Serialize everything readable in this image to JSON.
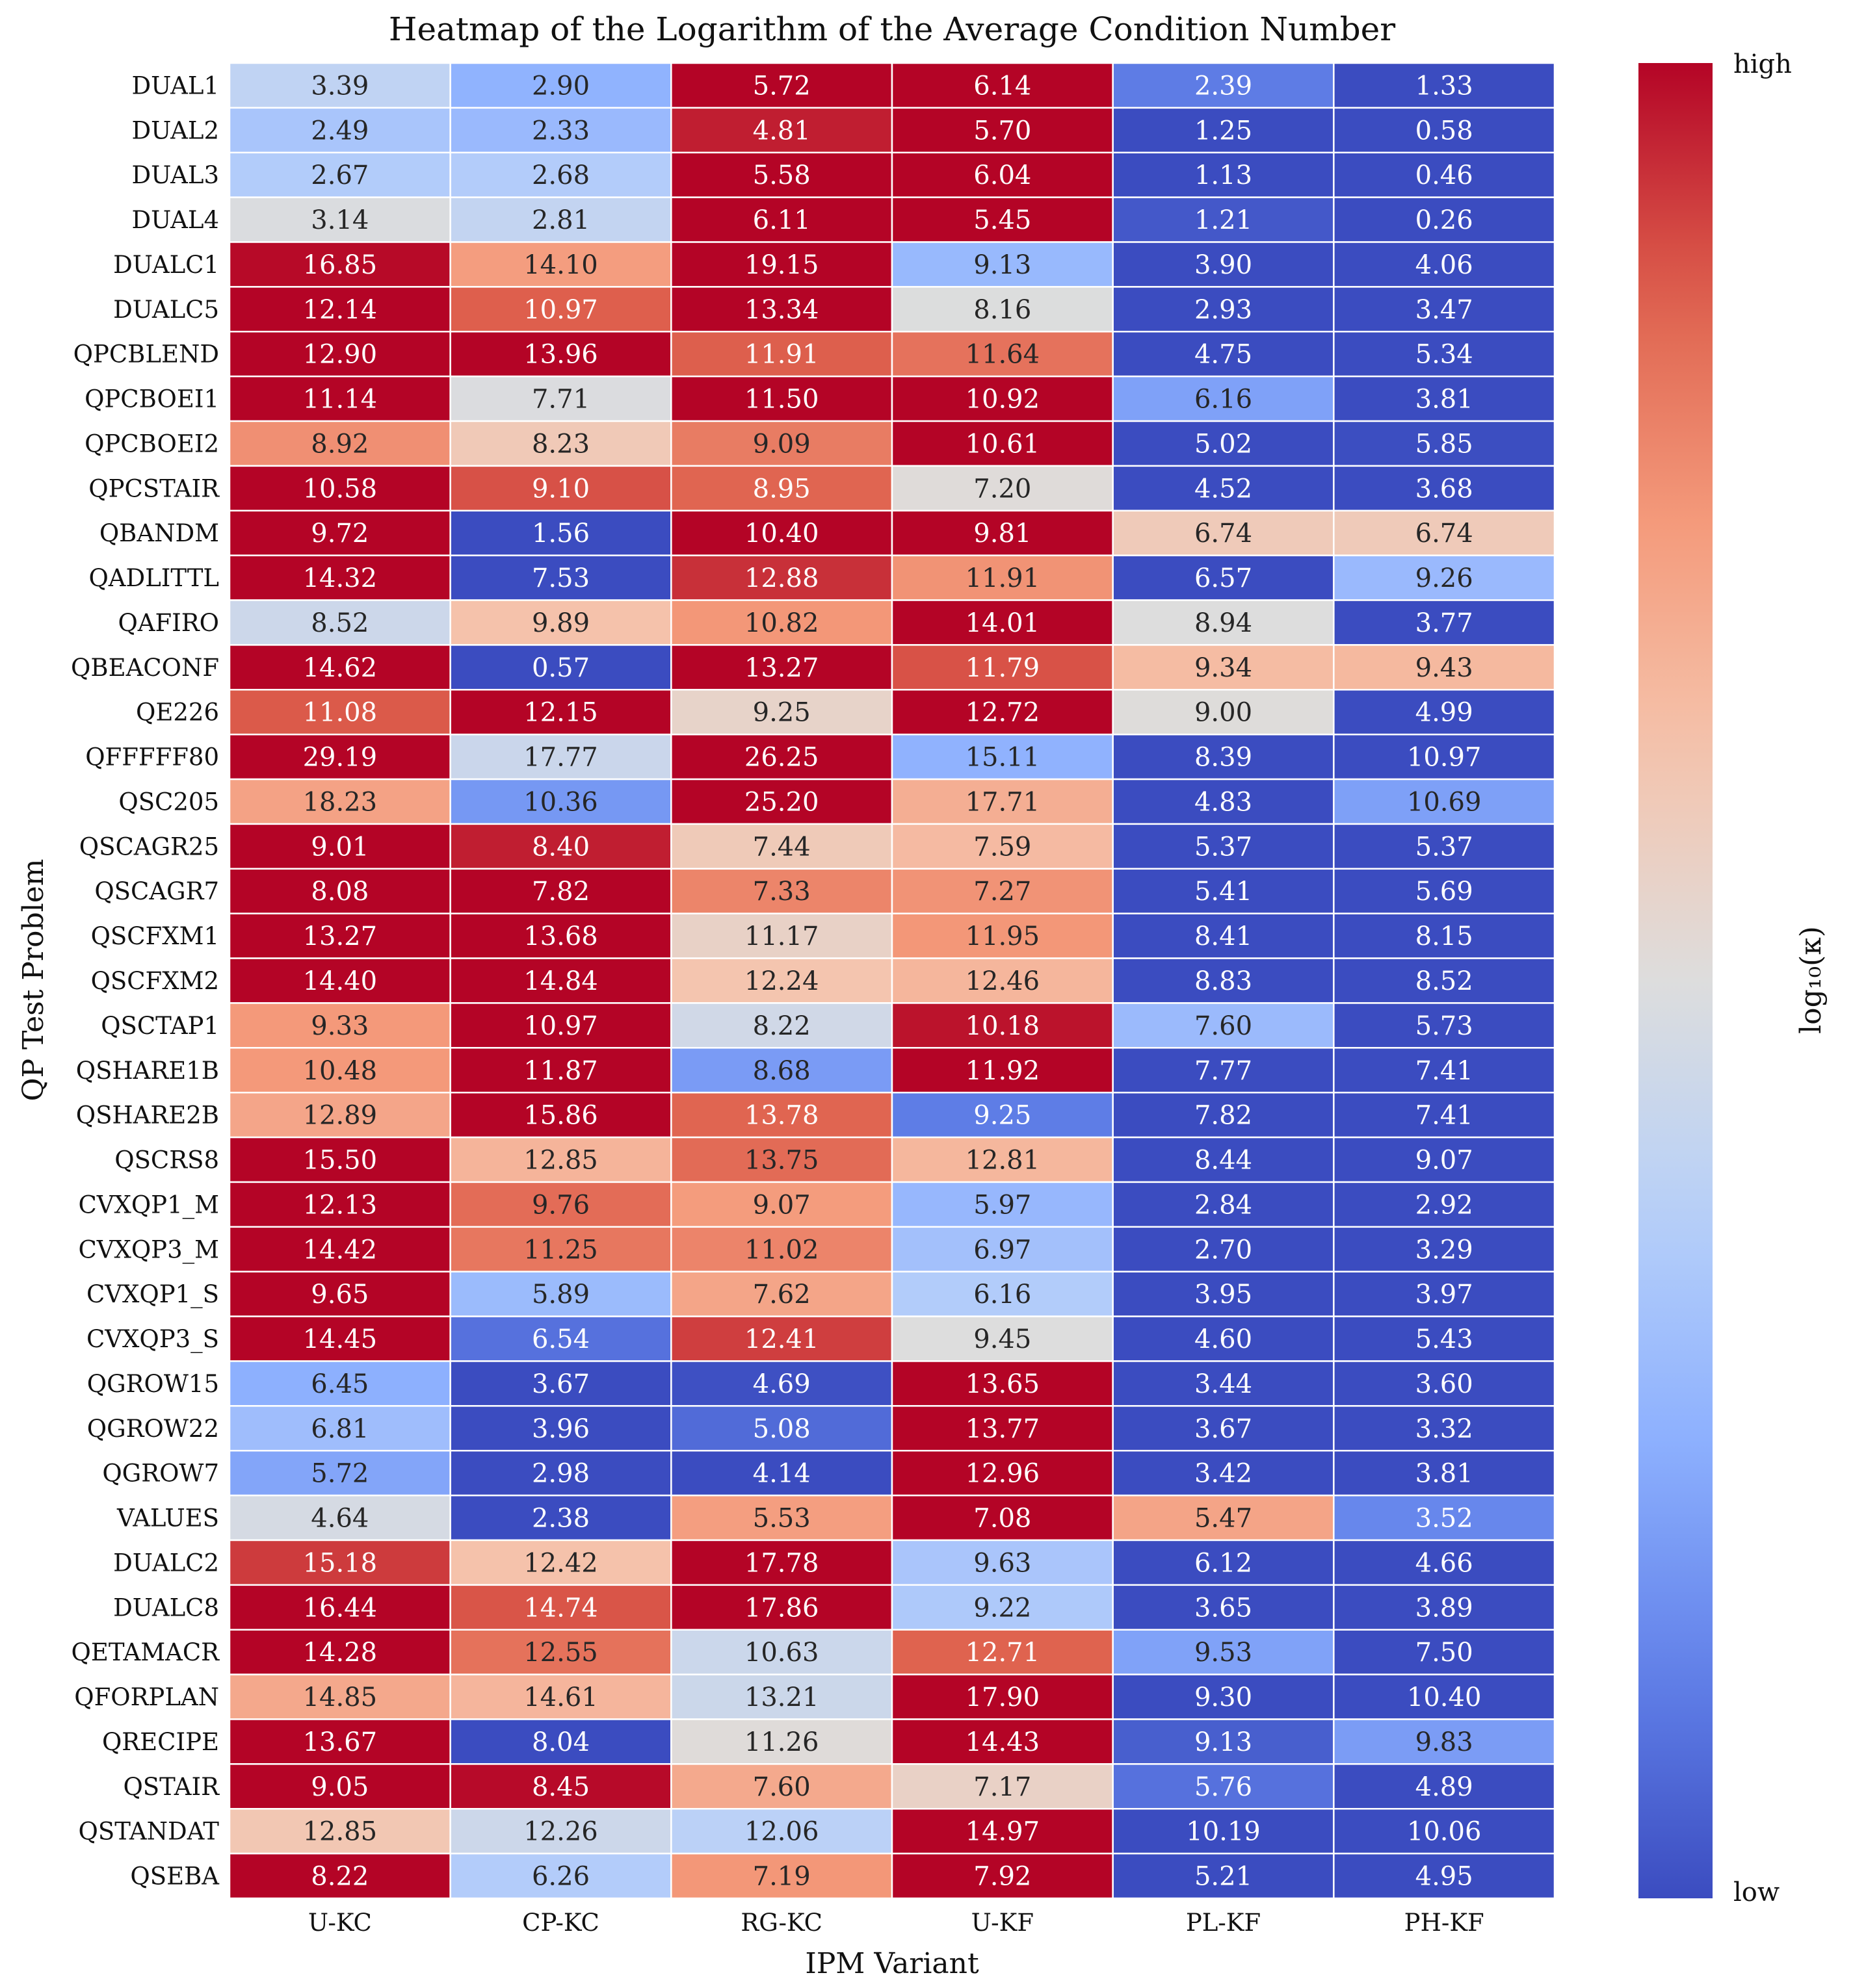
{
  "chart_data": {
    "type": "heatmap",
    "title": "Heatmap of the Logarithm of the Average Condition Number",
    "xlabel": "IPM Variant",
    "ylabel": "QP Test Problem",
    "colorbar": {
      "label": "log₁₀(κ)",
      "high_label": "high",
      "low_label": "low",
      "colormap": "coolwarm"
    },
    "color_scale": "per-row",
    "columns": [
      "U-KC",
      "CP-KC",
      "RG-KC",
      "U-KF",
      "PL-KF",
      "PH-KF"
    ],
    "rows": [
      "DUAL1",
      "DUAL2",
      "DUAL3",
      "DUAL4",
      "DUALC1",
      "DUALC5",
      "QPCBLEND",
      "QPCBOEI1",
      "QPCBOEI2",
      "QPCSTAIR",
      "QBANDM",
      "QADLITTL",
      "QAFIRO",
      "QBEACONF",
      "QE226",
      "QFFFFF80",
      "QSC205",
      "QSCAGR25",
      "QSCAGR7",
      "QSCFXM1",
      "QSCFXM2",
      "QSCTAP1",
      "QSHARE1B",
      "QSHARE2B",
      "QSCRS8",
      "CVXQP1_M",
      "CVXQP3_M",
      "CVXQP1_S",
      "CVXQP3_S",
      "QGROW15",
      "QGROW22",
      "QGROW7",
      "VALUES",
      "DUALC2",
      "DUALC8",
      "QETAMACR",
      "QFORPLAN",
      "QRECIPE",
      "QSTAIR",
      "QSTANDAT",
      "QSEBA"
    ],
    "values": [
      [
        3.39,
        2.9,
        5.72,
        6.14,
        2.39,
        1.33
      ],
      [
        2.49,
        2.33,
        4.81,
        5.7,
        1.25,
        0.58
      ],
      [
        2.67,
        2.68,
        5.58,
        6.04,
        1.13,
        0.46
      ],
      [
        3.14,
        2.81,
        6.11,
        5.45,
        1.21,
        0.26
      ],
      [
        16.85,
        14.1,
        19.15,
        9.13,
        3.9,
        4.06
      ],
      [
        12.14,
        10.97,
        13.34,
        8.16,
        2.93,
        3.47
      ],
      [
        12.9,
        13.96,
        11.91,
        11.64,
        4.75,
        5.34
      ],
      [
        11.14,
        7.71,
        11.5,
        10.92,
        6.16,
        3.81
      ],
      [
        8.92,
        8.23,
        9.09,
        10.61,
        5.02,
        5.85
      ],
      [
        10.58,
        9.1,
        8.95,
        7.2,
        4.52,
        3.68
      ],
      [
        9.72,
        1.56,
        10.4,
        9.81,
        6.74,
        6.74
      ],
      [
        14.32,
        7.53,
        12.88,
        11.91,
        6.57,
        9.26
      ],
      [
        8.52,
        9.89,
        10.82,
        14.01,
        8.94,
        3.77
      ],
      [
        14.62,
        0.57,
        13.27,
        11.79,
        9.34,
        9.43
      ],
      [
        11.08,
        12.15,
        9.25,
        12.72,
        9.0,
        4.99
      ],
      [
        29.19,
        17.77,
        26.25,
        15.11,
        8.39,
        10.97
      ],
      [
        18.23,
        10.36,
        25.2,
        17.71,
        4.83,
        10.69
      ],
      [
        9.01,
        8.4,
        7.44,
        7.59,
        5.37,
        5.37
      ],
      [
        8.08,
        7.82,
        7.33,
        7.27,
        5.41,
        5.69
      ],
      [
        13.27,
        13.68,
        11.17,
        11.95,
        8.41,
        8.15
      ],
      [
        14.4,
        14.84,
        12.24,
        12.46,
        8.83,
        8.52
      ],
      [
        9.33,
        10.97,
        8.22,
        10.18,
        7.6,
        5.73
      ],
      [
        10.48,
        11.87,
        8.68,
        11.92,
        7.77,
        7.41
      ],
      [
        12.89,
        15.86,
        13.78,
        9.25,
        7.82,
        7.41
      ],
      [
        15.5,
        12.85,
        13.75,
        12.81,
        8.44,
        9.07
      ],
      [
        12.13,
        9.76,
        9.07,
        5.97,
        2.84,
        2.92
      ],
      [
        14.42,
        11.25,
        11.02,
        6.97,
        2.7,
        3.29
      ],
      [
        9.65,
        5.89,
        7.62,
        6.16,
        3.95,
        3.97
      ],
      [
        14.45,
        6.54,
        12.41,
        9.45,
        4.6,
        5.43
      ],
      [
        6.45,
        3.67,
        4.69,
        13.65,
        3.44,
        3.6
      ],
      [
        6.81,
        3.96,
        5.08,
        13.77,
        3.67,
        3.32
      ],
      [
        5.72,
        2.98,
        4.14,
        12.96,
        3.42,
        3.81
      ],
      [
        4.64,
        2.38,
        5.53,
        7.08,
        5.47,
        3.52
      ],
      [
        15.18,
        12.42,
        17.78,
        9.63,
        6.12,
        4.66
      ],
      [
        16.44,
        14.74,
        17.86,
        9.22,
        3.65,
        3.89
      ],
      [
        14.28,
        12.55,
        10.63,
        12.71,
        9.53,
        7.5
      ],
      [
        14.85,
        14.61,
        13.21,
        17.9,
        9.3,
        10.4
      ],
      [
        13.67,
        8.04,
        11.26,
        14.43,
        9.13,
        9.83
      ],
      [
        9.05,
        8.45,
        7.6,
        7.17,
        5.76,
        4.89
      ],
      [
        12.85,
        12.26,
        12.06,
        14.97,
        10.19,
        10.06
      ],
      [
        8.22,
        6.26,
        7.19,
        7.92,
        5.21,
        4.95
      ]
    ]
  }
}
